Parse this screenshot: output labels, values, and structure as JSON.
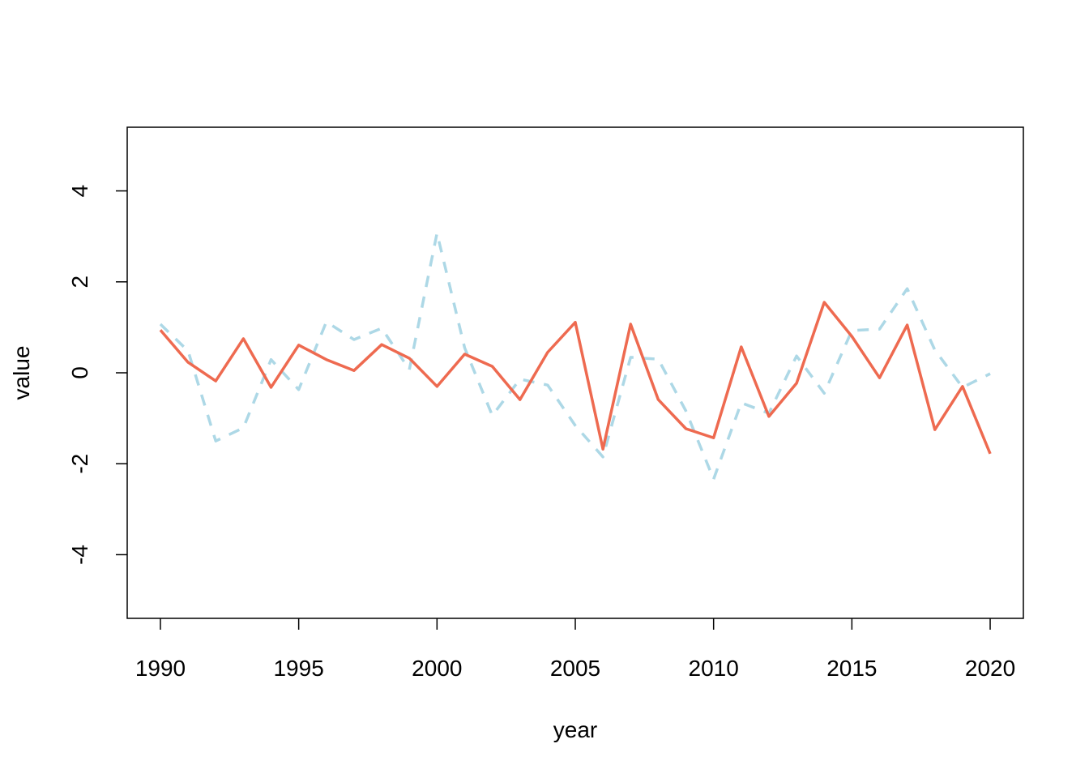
{
  "chart_data": {
    "type": "line",
    "x_label": "year",
    "y_label": "value",
    "x": [
      1990,
      1991,
      1992,
      1993,
      1994,
      1995,
      1996,
      1997,
      1998,
      1999,
      2000,
      2001,
      2002,
      2003,
      2004,
      2005,
      2006,
      2007,
      2008,
      2009,
      2010,
      2011,
      2012,
      2013,
      2014,
      2015,
      2016,
      2017,
      2018,
      2019,
      2020
    ],
    "series": [
      {
        "color": "#add8e6",
        "dashed": true,
        "values": [
          1.07,
          0.48,
          -1.5,
          -1.21,
          0.29,
          -0.37,
          1.12,
          0.73,
          0.98,
          0.07,
          3.07,
          0.55,
          -0.94,
          -0.14,
          -0.27,
          -1.16,
          -1.85,
          0.34,
          0.3,
          -0.84,
          -2.34,
          -0.66,
          -0.89,
          0.37,
          -0.45,
          0.93,
          0.96,
          1.85,
          0.5,
          -0.32,
          -0.02
        ]
      },
      {
        "color": "#ee6a50",
        "dashed": false,
        "values": [
          0.94,
          0.23,
          -0.18,
          0.75,
          -0.32,
          0.61,
          0.29,
          0.05,
          0.62,
          0.32,
          -0.3,
          0.41,
          0.14,
          -0.59,
          0.45,
          1.11,
          -1.68,
          1.07,
          -0.59,
          -1.23,
          -1.43,
          0.57,
          -0.96,
          -0.23,
          1.55,
          0.8,
          -0.11,
          1.05,
          -1.25,
          -0.3,
          -1.78
        ]
      }
    ],
    "xlim": [
      1988.8,
      2021.2
    ],
    "ylim": [
      -5.4,
      5.4
    ],
    "xticks": [
      1990,
      1995,
      2000,
      2005,
      2010,
      2015,
      2020
    ],
    "yticks": [
      -4,
      -2,
      0,
      2,
      4
    ]
  }
}
